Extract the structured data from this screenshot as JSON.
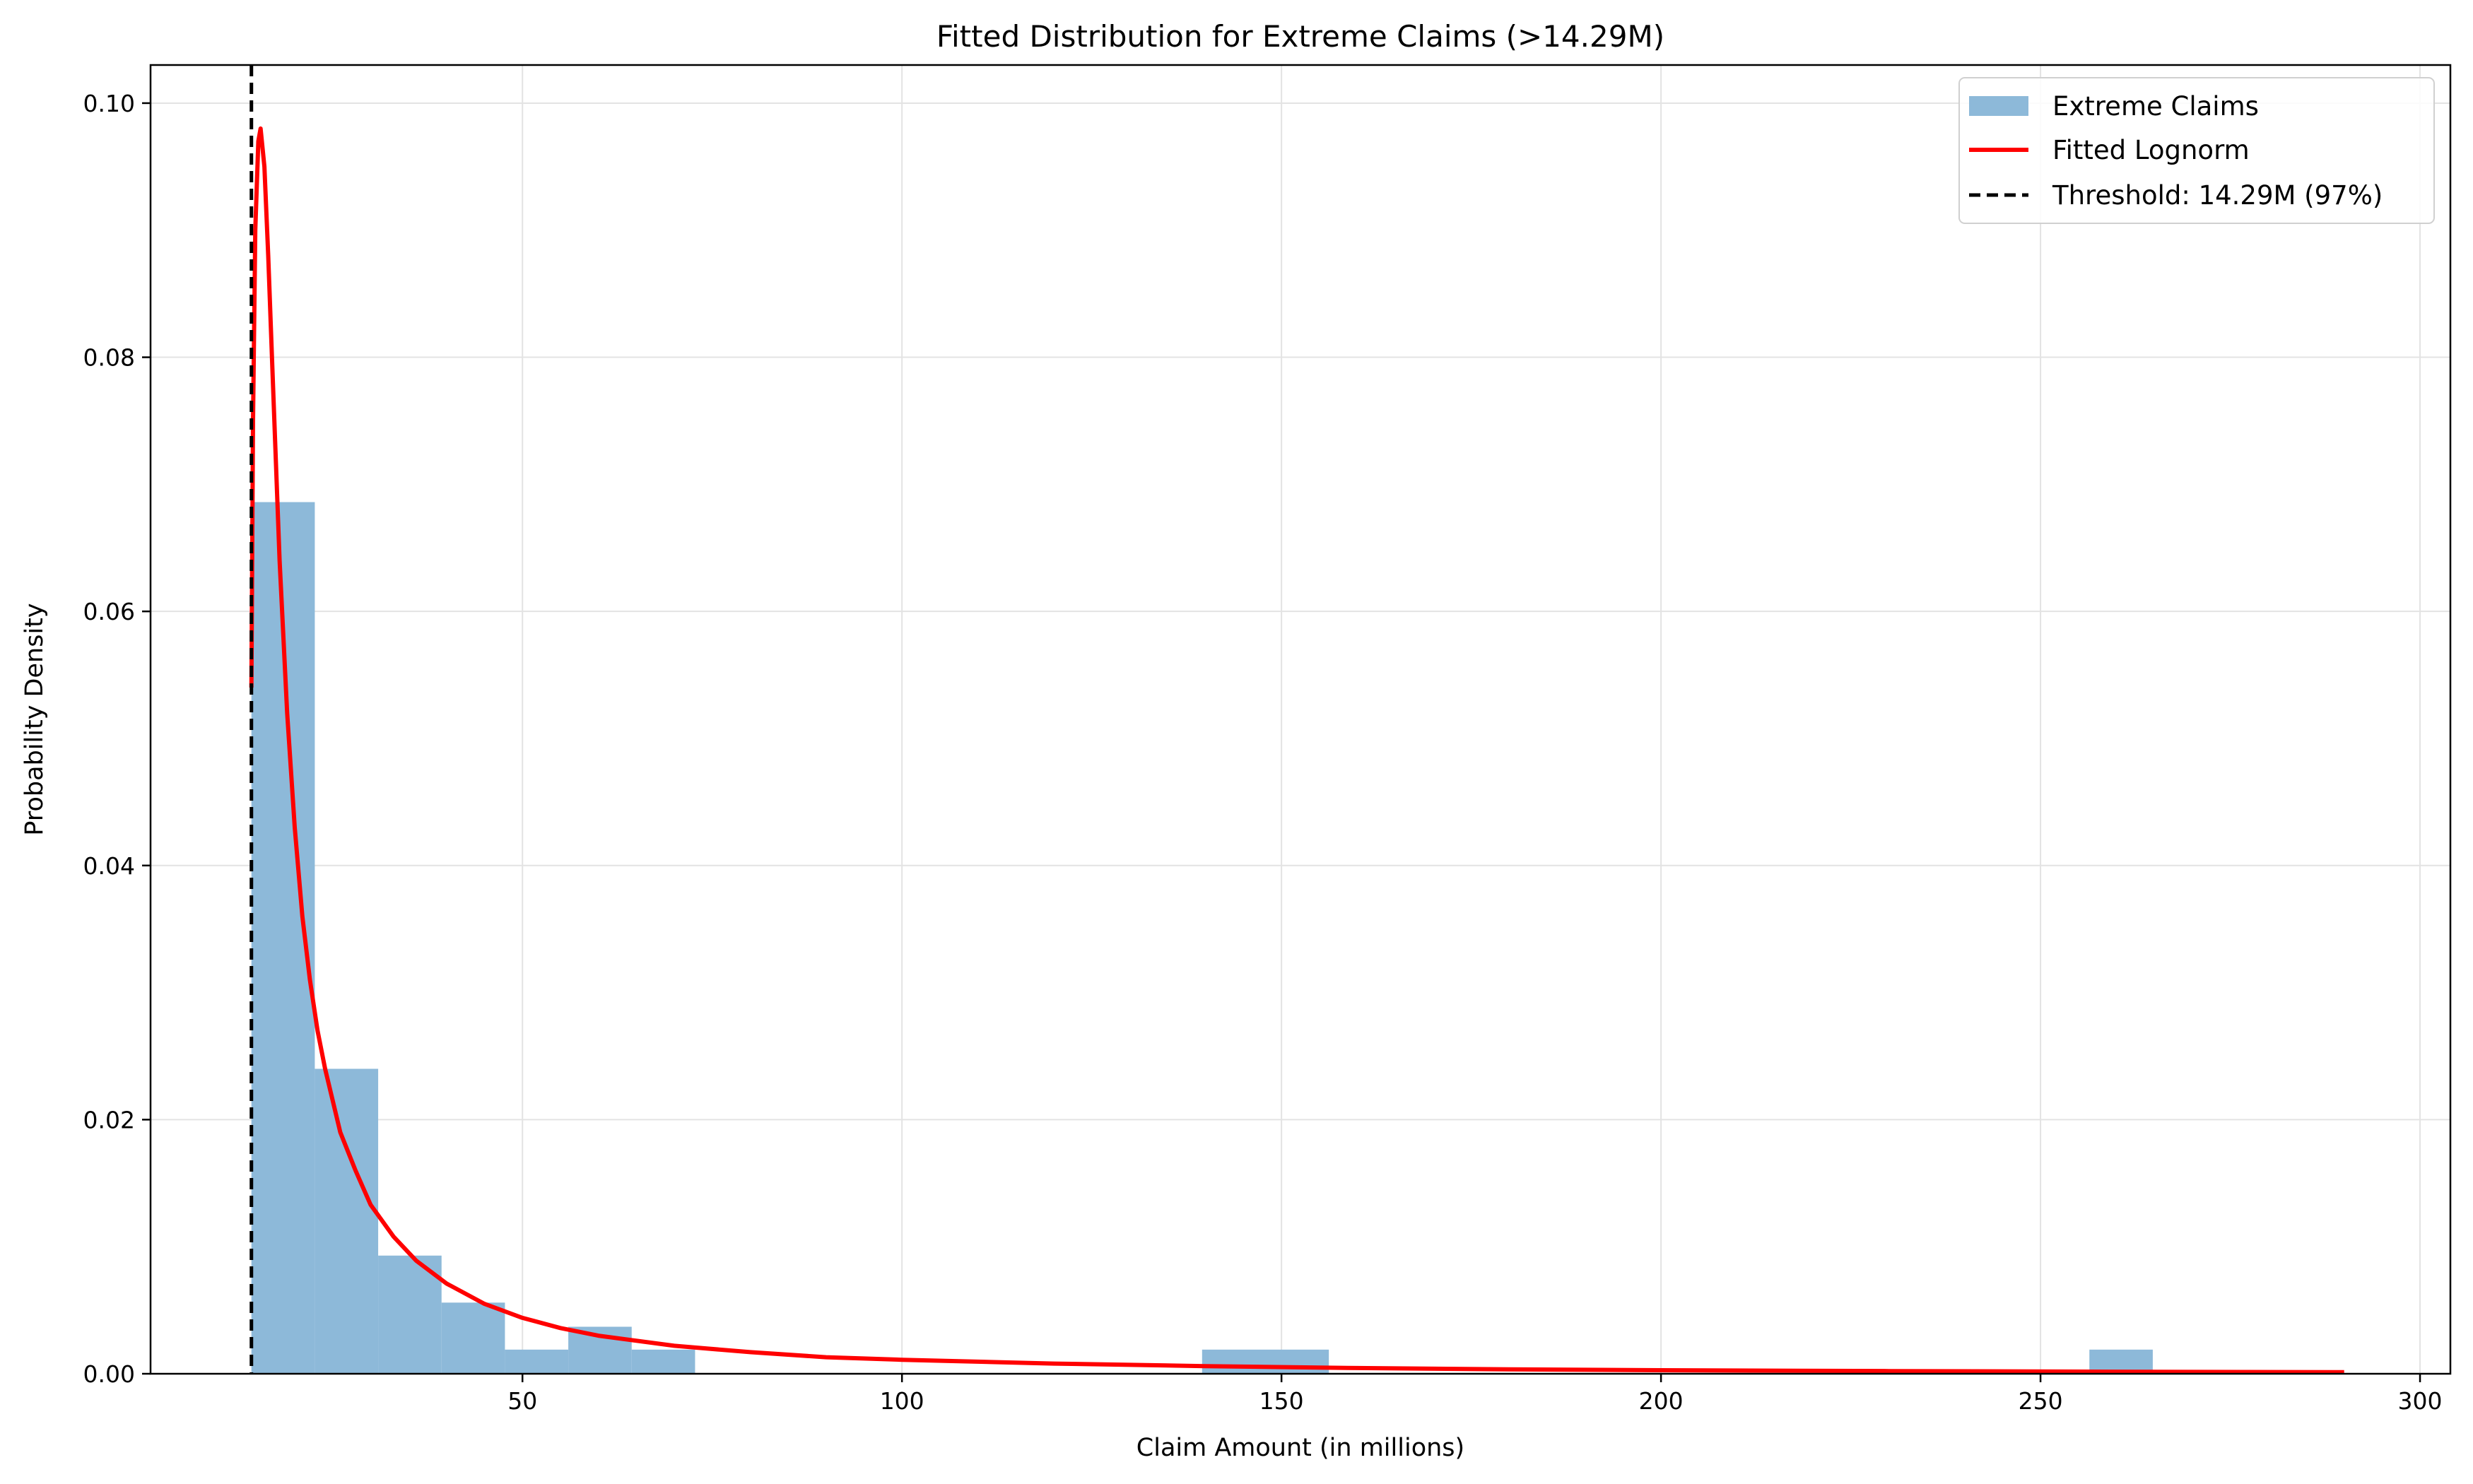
{
  "chart_data": {
    "type": "histogram",
    "title": "Fitted Distribution for Extreme Claims (>14.29M)",
    "xlabel": "Claim Amount (in millions)",
    "ylabel": "Probability Density",
    "xlim": [
      1,
      304
    ],
    "ylim": [
      0,
      0.103
    ],
    "xticks": [
      50,
      100,
      150,
      200,
      250,
      300
    ],
    "yticks": [
      0.0,
      0.02,
      0.04,
      0.06,
      0.08,
      0.1
    ],
    "xtick_labels": [
      "50",
      "100",
      "150",
      "200",
      "250",
      "300"
    ],
    "ytick_labels": [
      "0.00",
      "0.02",
      "0.04",
      "0.06",
      "0.08",
      "0.10"
    ],
    "grid": true,
    "legend_position": "top-right",
    "histogram": {
      "name": "Extreme Claims",
      "color": "#8db9d9",
      "bins": [
        {
          "x0": 14.29,
          "x1": 22.64,
          "density": 0.0686
        },
        {
          "x0": 22.64,
          "x1": 30.99,
          "density": 0.024
        },
        {
          "x0": 30.99,
          "x1": 39.34,
          "density": 0.0093
        },
        {
          "x0": 39.34,
          "x1": 47.69,
          "density": 0.0056
        },
        {
          "x0": 47.69,
          "x1": 56.04,
          "density": 0.0019
        },
        {
          "x0": 56.04,
          "x1": 64.39,
          "density": 0.0037
        },
        {
          "x0": 64.39,
          "x1": 72.74,
          "density": 0.0019
        },
        {
          "x0": 139.54,
          "x1": 147.89,
          "density": 0.0019
        },
        {
          "x0": 147.89,
          "x1": 156.24,
          "density": 0.0019
        },
        {
          "x0": 256.44,
          "x1": 264.79,
          "density": 0.0019
        }
      ]
    },
    "fitted_curve": {
      "name": "Fitted Lognorm",
      "color": "#ff0000",
      "points": [
        [
          14.29,
          0.054
        ],
        [
          14.5,
          0.075
        ],
        [
          14.8,
          0.09
        ],
        [
          15.2,
          0.097
        ],
        [
          15.5,
          0.098
        ],
        [
          16.0,
          0.095
        ],
        [
          16.5,
          0.088
        ],
        [
          17.0,
          0.08
        ],
        [
          17.5,
          0.072
        ],
        [
          18.0,
          0.064
        ],
        [
          19.0,
          0.052
        ],
        [
          20.0,
          0.043
        ],
        [
          21.0,
          0.036
        ],
        [
          22.0,
          0.031
        ],
        [
          23.0,
          0.027
        ],
        [
          24.0,
          0.024
        ],
        [
          26.0,
          0.019
        ],
        [
          28.0,
          0.016
        ],
        [
          30.0,
          0.0133
        ],
        [
          33.0,
          0.0108
        ],
        [
          36.0,
          0.0089
        ],
        [
          40.0,
          0.0071
        ],
        [
          45.0,
          0.0055
        ],
        [
          50.0,
          0.0044
        ],
        [
          55.0,
          0.0036
        ],
        [
          60.0,
          0.003
        ],
        [
          70.0,
          0.0022
        ],
        [
          80.0,
          0.0017
        ],
        [
          90.0,
          0.0013
        ],
        [
          100.0,
          0.0011
        ],
        [
          120.0,
          0.0008
        ],
        [
          140.0,
          0.0006
        ],
        [
          160.0,
          0.00045
        ],
        [
          180.0,
          0.00035
        ],
        [
          200.0,
          0.00028
        ],
        [
          230.0,
          0.00021
        ],
        [
          260.0,
          0.00016
        ],
        [
          290.0,
          0.00012
        ]
      ]
    },
    "threshold": {
      "name": "Threshold: 14.29M (97%)",
      "x": 14.29,
      "color": "#000000"
    }
  }
}
